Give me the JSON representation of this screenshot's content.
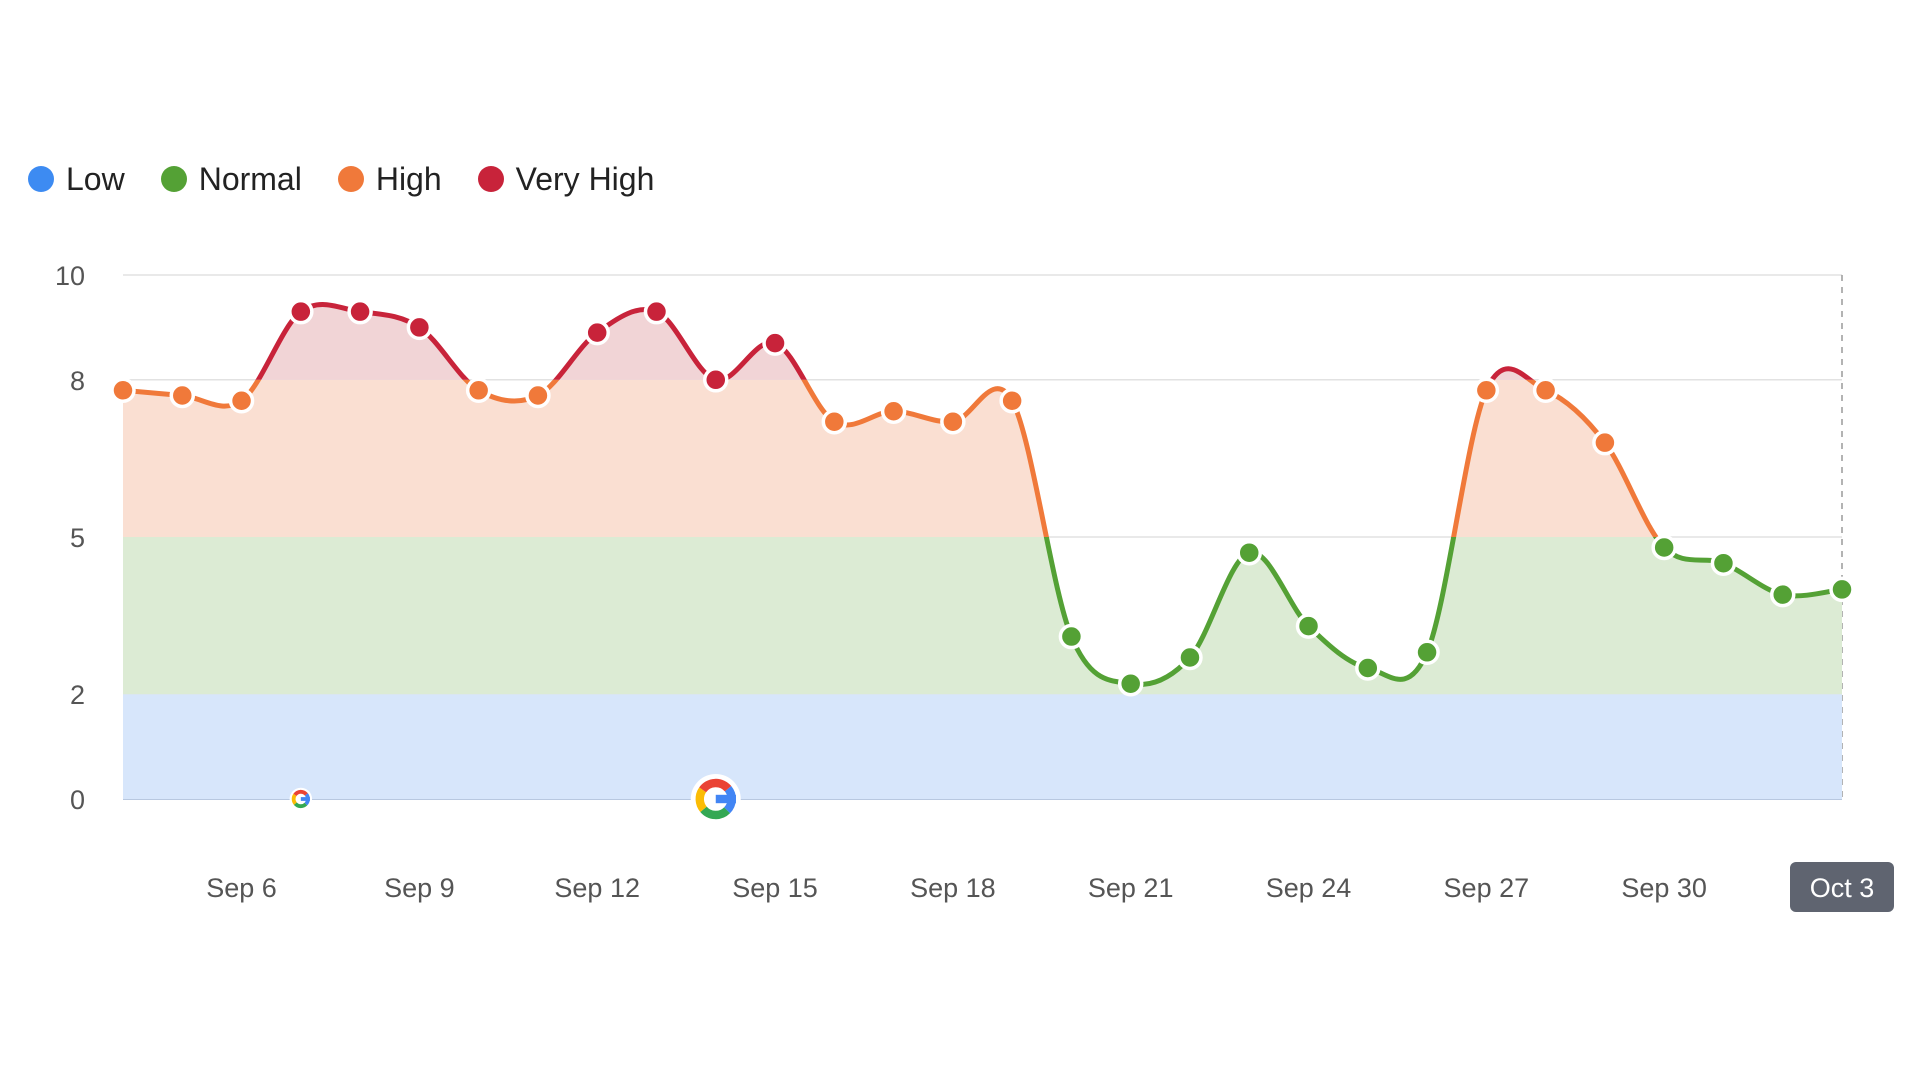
{
  "legend": [
    {
      "label": "Low",
      "color": "#3d8bf2"
    },
    {
      "label": "Normal",
      "color": "#54a135"
    },
    {
      "label": "High",
      "color": "#f0793a"
    },
    {
      "label": "Very High",
      "color": "#c8233a"
    }
  ],
  "chart_data": {
    "type": "line",
    "title": "",
    "xlabel": "",
    "ylabel": "",
    "ylim": [
      0,
      10
    ],
    "yticks": [
      0,
      2,
      5,
      8,
      10
    ],
    "x_tick_labels": [
      "Sep 6",
      "Sep 9",
      "Sep 12",
      "Sep 15",
      "Sep 18",
      "Sep 21",
      "Sep 24",
      "Sep 27",
      "Sep 30",
      "Oct 3"
    ],
    "highlighted_x_label": "Oct 3",
    "x": [
      "Sep 4",
      "Sep 5",
      "Sep 6",
      "Sep 7",
      "Sep 8",
      "Sep 9",
      "Sep 10",
      "Sep 11",
      "Sep 12",
      "Sep 13",
      "Sep 14",
      "Sep 15",
      "Sep 16",
      "Sep 17",
      "Sep 18",
      "Sep 19",
      "Sep 20",
      "Sep 21",
      "Sep 22",
      "Sep 23",
      "Sep 24",
      "Sep 25",
      "Sep 26",
      "Sep 27",
      "Sep 28",
      "Sep 29",
      "Sep 30",
      "Oct 1",
      "Oct 2",
      "Oct 3"
    ],
    "values": [
      7.8,
      7.7,
      7.6,
      9.3,
      9.3,
      9.0,
      7.8,
      7.7,
      8.9,
      9.3,
      8.0,
      8.7,
      7.2,
      7.4,
      7.2,
      7.6,
      3.1,
      2.2,
      2.7,
      4.7,
      3.3,
      2.5,
      2.8,
      7.8,
      7.8,
      6.8,
      4.8,
      4.5,
      3.9,
      4.0
    ],
    "bands": [
      {
        "name": "Low",
        "range": [
          0,
          2
        ],
        "fill": "#d7e6fb",
        "line": "#3d8bf2"
      },
      {
        "name": "Normal",
        "range": [
          2,
          5
        ],
        "fill": "#dcebd4",
        "line": "#54a135"
      },
      {
        "name": "High",
        "range": [
          5,
          8
        ],
        "fill": "#fadfd2",
        "line": "#f0793a"
      },
      {
        "name": "Very High",
        "range": [
          8,
          10
        ],
        "fill": "#f1d4d6",
        "line": "#c8233a"
      }
    ],
    "annotations": [
      {
        "x": "Sep 7",
        "icon": "google-icon",
        "size": "small"
      },
      {
        "x": "Sep 14",
        "icon": "google-icon",
        "size": "large"
      }
    ],
    "grid": true,
    "legend_position": "top-left"
  }
}
